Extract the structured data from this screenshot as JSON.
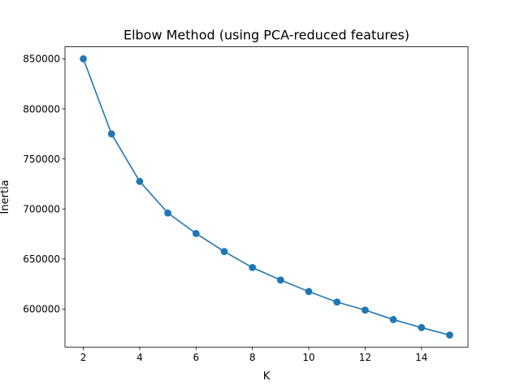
{
  "chart_data": {
    "type": "line",
    "title": "Elbow Method (using PCA-reduced features)",
    "xlabel": "K",
    "ylabel": "Inertia",
    "xlim": [
      1.35,
      15.65
    ],
    "ylim": [
      562000,
      862000
    ],
    "xticks": [
      2,
      4,
      6,
      8,
      10,
      12,
      14
    ],
    "yticks": [
      600000,
      650000,
      700000,
      750000,
      800000,
      850000
    ],
    "grid": false,
    "marker": "circle",
    "series": [
      {
        "color": "#1f77b4",
        "x": [
          2,
          3,
          4,
          5,
          6,
          7,
          8,
          9,
          10,
          11,
          12,
          13,
          14,
          15
        ],
        "y": [
          850000,
          775000,
          727500,
          696000,
          675500,
          657500,
          641500,
          629000,
          617500,
          607000,
          599000,
          589500,
          581500,
          574000
        ]
      }
    ]
  }
}
